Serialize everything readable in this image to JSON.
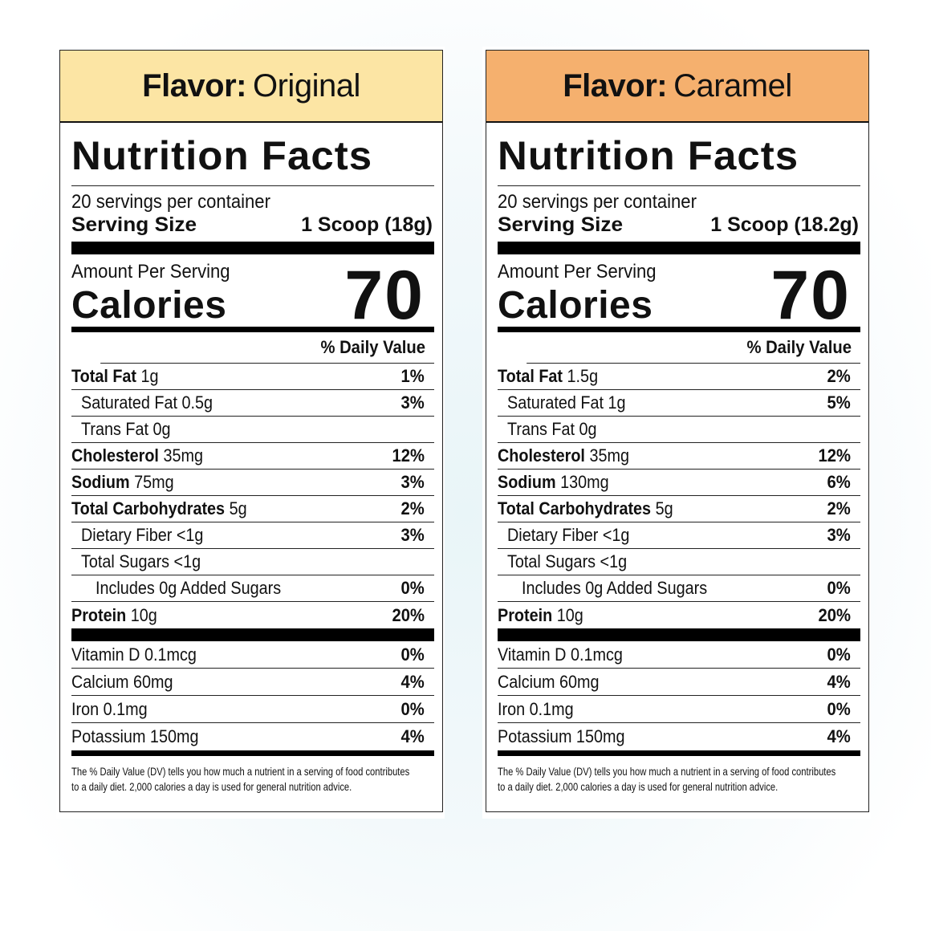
{
  "labels": [
    {
      "flavor_key": "Flavor:",
      "flavor_value": "Original",
      "header_color": "#fce5a4",
      "title": "Nutrition Facts",
      "servings": "20 servings per container",
      "serving_size_label": "Serving Size",
      "serving_size_value": "1 Scoop (18g)",
      "amount_per_serving": "Amount Per Serving",
      "calories_label": "Calories",
      "calories": "70",
      "dv_header": "% Daily Value",
      "rows": [
        {
          "bold": "Total Fat",
          "rest": "1g",
          "pct": "1%"
        },
        {
          "bold": "",
          "rest": "Saturated Fat 0.5g",
          "pct": "3%"
        },
        {
          "bold": "",
          "rest": "Trans Fat 0g",
          "pct": ""
        },
        {
          "bold": "Cholesterol",
          "rest": "35mg",
          "pct": "12%"
        },
        {
          "bold": "Sodium",
          "rest": "75mg",
          "pct": "3%"
        },
        {
          "bold": "Total Carbohydrates",
          "rest": "5g",
          "pct": "2%"
        },
        {
          "bold": "",
          "rest": "Dietary Fiber <1g",
          "pct": "3%"
        },
        {
          "bold": "",
          "rest": "Total Sugars <1g",
          "pct": ""
        },
        {
          "bold": "",
          "rest": "Includes 0g Added Sugars",
          "pct": "0%"
        },
        {
          "bold": "Protein",
          "rest": "10g",
          "pct": "20%"
        }
      ],
      "vitamins": [
        {
          "name": "Vitamin D 0.1mcg",
          "pct": "0%"
        },
        {
          "name": "Calcium 60mg",
          "pct": "4%"
        },
        {
          "name": "Iron 0.1mg",
          "pct": "0%"
        },
        {
          "name": "Potassium 150mg",
          "pct": "4%"
        }
      ],
      "footnote_1": "The % Daily Value (DV) tells you how much a nutrient in a serving of food contributes",
      "footnote_2": "to a daily diet. 2,000 calories a day is used for general nutrition advice."
    },
    {
      "flavor_key": "Flavor:",
      "flavor_value": "Caramel",
      "header_color": "#f5b06e",
      "title": "Nutrition Facts",
      "servings": "20 servings per container",
      "serving_size_label": "Serving Size",
      "serving_size_value": "1 Scoop (18.2g)",
      "amount_per_serving": "Amount Per Serving",
      "calories_label": "Calories",
      "calories": "70",
      "dv_header": "% Daily Value",
      "rows": [
        {
          "bold": "Total Fat",
          "rest": "1.5g",
          "pct": "2%"
        },
        {
          "bold": "",
          "rest": "Saturated Fat 1g",
          "pct": "5%"
        },
        {
          "bold": "",
          "rest": "Trans Fat 0g",
          "pct": ""
        },
        {
          "bold": "Cholesterol",
          "rest": "35mg",
          "pct": "12%"
        },
        {
          "bold": "Sodium",
          "rest": "130mg",
          "pct": "6%"
        },
        {
          "bold": "Total Carbohydrates",
          "rest": "5g",
          "pct": "2%"
        },
        {
          "bold": "",
          "rest": "Dietary Fiber <1g",
          "pct": "3%"
        },
        {
          "bold": "",
          "rest": "Total Sugars <1g",
          "pct": ""
        },
        {
          "bold": "",
          "rest": "Includes 0g Added Sugars",
          "pct": "0%"
        },
        {
          "bold": "Protein",
          "rest": "10g",
          "pct": "20%"
        }
      ],
      "vitamins": [
        {
          "name": "Vitamin D 0.1mcg",
          "pct": "0%"
        },
        {
          "name": "Calcium 60mg",
          "pct": "4%"
        },
        {
          "name": "Iron 0.1mg",
          "pct": "0%"
        },
        {
          "name": "Potassium 150mg",
          "pct": "4%"
        }
      ],
      "footnote_1": "The % Daily Value (DV) tells you how much a nutrient in a serving of food contributes",
      "footnote_2": "to a daily diet. 2,000 calories a day is used for general nutrition advice."
    }
  ]
}
